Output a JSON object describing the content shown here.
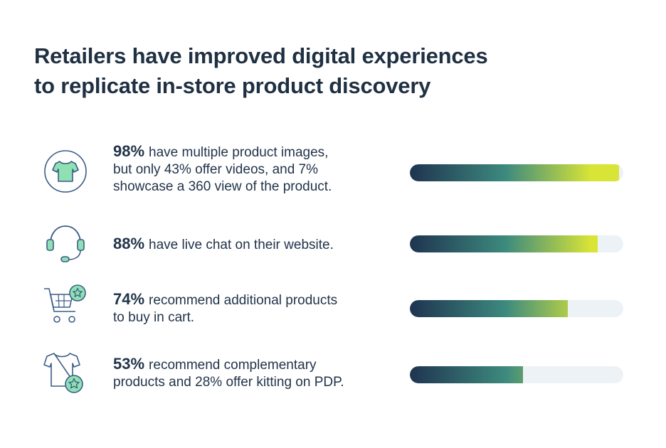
{
  "title_lines": [
    "Retailers have improved digital experiences",
    "to replicate in-store product discovery"
  ],
  "chart_data": {
    "type": "bar",
    "orientation": "horizontal",
    "title": "Retailers have improved digital experiences to replicate in-store product discovery",
    "xlim": [
      0,
      100
    ],
    "grid": false,
    "categories": [
      "98% have multiple product images, but only 43% offer videos, and 7% showcase a 360 view of the product.",
      "88% have live chat on their website.",
      "74% recommend additional products to buy in cart.",
      "53% recommend complementary products and 28% offer kitting on PDP."
    ],
    "values": [
      98,
      88,
      74,
      53
    ]
  },
  "items": [
    {
      "pct": "98%",
      "lines": [
        "have multiple product images,",
        "but only 43% offer videos, and 7%",
        "showcase a 360 view of the product."
      ],
      "value": 98,
      "icon": "t-shirt-icon"
    },
    {
      "pct": "88%",
      "lines": [
        "have live chat on their website."
      ],
      "value": 88,
      "icon": "headset-icon"
    },
    {
      "pct": "74%",
      "lines": [
        "recommend additional products",
        "to buy in cart."
      ],
      "value": 74,
      "icon": "shopping-cart-star-icon"
    },
    {
      "pct": "53%",
      "lines": [
        "recommend complementary",
        "products and 28% offer kitting on PDP."
      ],
      "value": 53,
      "icon": "t-shirt-star-icon"
    }
  ],
  "colors": {
    "navy": "#1f3450",
    "teal": "#3d8a7e",
    "lime": "#d9e536",
    "track": "#edf2f7",
    "icon_stroke": "#3c5d86",
    "icon_fill": "#8fe0b3"
  }
}
